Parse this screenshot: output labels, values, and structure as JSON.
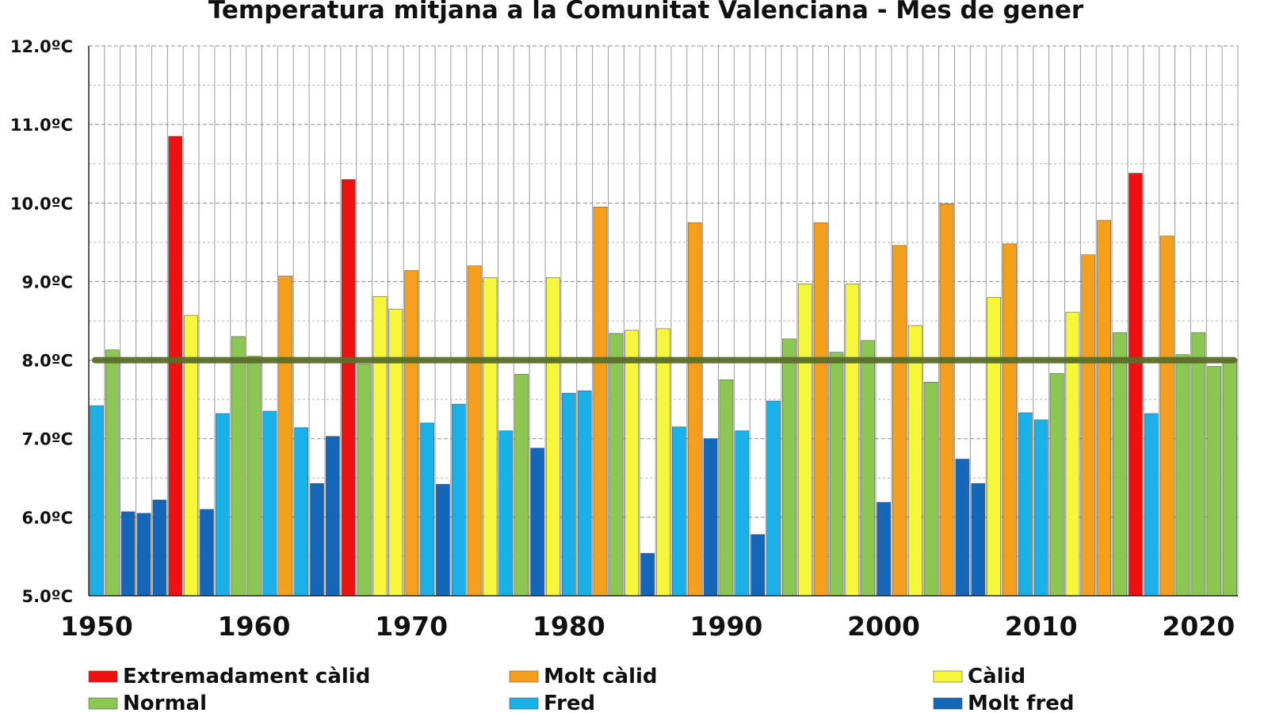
{
  "chart_data": {
    "type": "bar",
    "title": "Temperatura mitjana a la Comunitat Valenciana - Mes de gener",
    "xlabel": "",
    "ylabel": "",
    "ylim": [
      5.0,
      12.0
    ],
    "yticks": [
      {
        "value": 12.0,
        "label": "12.0ºC"
      },
      {
        "value": 11.0,
        "label": "11.0ºC"
      },
      {
        "value": 10.0,
        "label": "10.0ºC"
      },
      {
        "value": 9.0,
        "label": "9.0ºC"
      },
      {
        "value": 8.0,
        "label": "8.0ºC"
      },
      {
        "value": 7.0,
        "label": "7.0ºC"
      },
      {
        "value": 6.0,
        "label": "6.0ºC"
      },
      {
        "value": 5.0,
        "label": "5.0ºC"
      }
    ],
    "xticks": [
      {
        "year": 1950,
        "label": "1950"
      },
      {
        "year": 1960,
        "label": "1960"
      },
      {
        "year": 1970,
        "label": "1970"
      },
      {
        "year": 1980,
        "label": "1980"
      },
      {
        "year": 1990,
        "label": "1990"
      },
      {
        "year": 2000,
        "label": "2000"
      },
      {
        "year": 2010,
        "label": "2010"
      },
      {
        "year": 2020,
        "label": "2020"
      }
    ],
    "grid": true,
    "reference_line": {
      "value": 8.0,
      "color": "#5a6e2a"
    },
    "category_colors": {
      "EC": "#ee1111",
      "MC": "#f5a01c",
      "C": "#f6f63a",
      "N": "#8cc653",
      "F": "#1ab0e8",
      "MF": "#1466b8"
    },
    "legend": [
      {
        "key": "EC",
        "label": "Extremadament càlid"
      },
      {
        "key": "MC",
        "label": "Molt càlid"
      },
      {
        "key": "C",
        "label": "Càlid"
      },
      {
        "key": "N",
        "label": "Normal"
      },
      {
        "key": "F",
        "label": "Fred"
      },
      {
        "key": "MF",
        "label": "Molt fred"
      }
    ],
    "years": [
      1950,
      1951,
      1952,
      1953,
      1954,
      1955,
      1956,
      1957,
      1958,
      1959,
      1960,
      1961,
      1962,
      1963,
      1964,
      1965,
      1966,
      1967,
      1968,
      1969,
      1970,
      1971,
      1972,
      1973,
      1974,
      1975,
      1976,
      1977,
      1978,
      1979,
      1980,
      1981,
      1982,
      1983,
      1984,
      1985,
      1986,
      1987,
      1988,
      1989,
      1990,
      1991,
      1992,
      1993,
      1994,
      1995,
      1996,
      1997,
      1998,
      1999,
      2000,
      2001,
      2002,
      2003,
      2004,
      2005,
      2006,
      2007,
      2008,
      2009,
      2010,
      2011,
      2012,
      2013,
      2014,
      2015,
      2016,
      2017,
      2018,
      2019,
      2020,
      2021,
      2022
    ],
    "values": [
      7.42,
      8.13,
      6.07,
      6.05,
      6.22,
      10.85,
      8.57,
      6.1,
      7.32,
      8.3,
      8.05,
      7.35,
      9.07,
      7.14,
      6.43,
      7.03,
      10.3,
      7.95,
      8.81,
      8.65,
      9.14,
      7.2,
      6.42,
      7.44,
      9.2,
      9.05,
      7.1,
      7.82,
      6.88,
      9.05,
      7.58,
      7.61,
      9.95,
      8.34,
      8.38,
      5.54,
      8.4,
      7.15,
      9.75,
      7.0,
      7.75,
      7.1,
      5.78,
      7.48,
      8.27,
      8.97,
      9.75,
      8.1,
      8.97,
      8.25,
      6.19,
      9.46,
      8.44,
      7.72,
      9.99,
      6.74,
      6.43,
      8.8,
      9.48,
      7.33,
      7.24,
      7.83,
      8.61,
      9.34,
      9.78,
      8.35,
      10.38,
      7.32,
      9.58,
      8.07,
      8.35,
      7.92,
      8.0
    ],
    "classes": [
      "F",
      "N",
      "MF",
      "MF",
      "MF",
      "EC",
      "C",
      "MF",
      "F",
      "N",
      "N",
      "F",
      "MC",
      "F",
      "MF",
      "MF",
      "EC",
      "N",
      "C",
      "C",
      "MC",
      "F",
      "MF",
      "F",
      "MC",
      "C",
      "F",
      "N",
      "MF",
      "C",
      "F",
      "F",
      "MC",
      "N",
      "C",
      "MF",
      "C",
      "F",
      "MC",
      "MF",
      "N",
      "F",
      "MF",
      "F",
      "N",
      "C",
      "MC",
      "N",
      "C",
      "N",
      "MF",
      "MC",
      "C",
      "N",
      "MC",
      "MF",
      "MF",
      "C",
      "MC",
      "F",
      "F",
      "N",
      "C",
      "MC",
      "MC",
      "N",
      "EC",
      "F",
      "MC",
      "N",
      "N",
      "N",
      "N"
    ]
  }
}
